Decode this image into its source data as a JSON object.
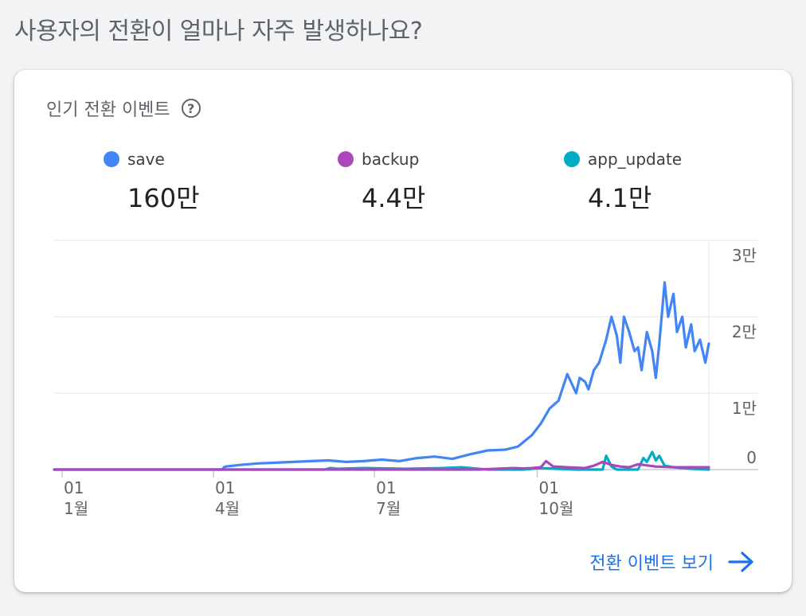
{
  "page": {
    "title": "사용자의 전환이 얼마나 자주 발생하나요?"
  },
  "card": {
    "title": "인기 전환 이벤트",
    "link_label": "전환 이벤트 보기"
  },
  "metrics": [
    {
      "name": "save",
      "value": "160만",
      "color": "#4285f4"
    },
    {
      "name": "backup",
      "value": "4.4만",
      "color": "#ab47bc"
    },
    {
      "name": "app_update",
      "value": "4.1만",
      "color": "#00acc1"
    }
  ],
  "icons": {
    "help": "help-icon",
    "arrow": "arrow-right-icon"
  },
  "chart_data": {
    "type": "line",
    "x_ticks": [
      {
        "day": "01",
        "month": "1월"
      },
      {
        "day": "01",
        "month": "4월"
      },
      {
        "day": "01",
        "month": "7월"
      },
      {
        "day": "01",
        "month": "10월"
      }
    ],
    "y_ticks": [
      "0",
      "1만",
      "2만",
      "3만"
    ],
    "ylim": [
      0,
      30000
    ],
    "grid": true,
    "series": [
      {
        "name": "save",
        "color": "#4285f4",
        "x": [
          0,
          95,
          96,
          97,
          105,
          115,
          125,
          135,
          145,
          155,
          165,
          175,
          185,
          195,
          205,
          215,
          225,
          235,
          245,
          255,
          262,
          270,
          275,
          280,
          285,
          290,
          295,
          297,
          300,
          302,
          305,
          308,
          310,
          312,
          315,
          318,
          320,
          322,
          325,
          328,
          330,
          332,
          335,
          338,
          340,
          342,
          345,
          347,
          350,
          352,
          355,
          357,
          360,
          362,
          365,
          368,
          370
        ],
        "y": [
          0,
          0,
          300,
          400,
          600,
          800,
          900,
          1000,
          1100,
          1200,
          1000,
          1100,
          1300,
          1100,
          1500,
          1700,
          1400,
          2000,
          2500,
          2600,
          3000,
          4500,
          6000,
          8000,
          9000,
          12500,
          10000,
          12000,
          11500,
          10500,
          13000,
          14000,
          15500,
          17000,
          20000,
          17500,
          14000,
          20000,
          18000,
          15500,
          16000,
          13000,
          18000,
          15500,
          12000,
          16500,
          24500,
          20000,
          23000,
          18000,
          20000,
          16000,
          19000,
          15500,
          17000,
          14000,
          16500
        ]
      },
      {
        "name": "backup",
        "color": "#ab47bc",
        "x": [
          0,
          240,
          250,
          260,
          265,
          270,
          275,
          278,
          282,
          290,
          300,
          305,
          310,
          315,
          320,
          325,
          330,
          340,
          350,
          360,
          370
        ],
        "y": [
          0,
          0,
          100,
          200,
          150,
          200,
          300,
          1100,
          400,
          300,
          200,
          500,
          1000,
          600,
          400,
          300,
          700,
          400,
          300,
          300,
          300
        ]
      },
      {
        "name": "app_update",
        "color": "#00acc1",
        "x": [
          0,
          153,
          156,
          160,
          175,
          200,
          220,
          230,
          245,
          265,
          275,
          295,
          300,
          305,
          310,
          312,
          315,
          318,
          320,
          325,
          330,
          333,
          335,
          338,
          340,
          342,
          345,
          350,
          355,
          360,
          370
        ],
        "y": [
          0,
          0,
          200,
          100,
          200,
          100,
          200,
          300,
          0,
          0,
          200,
          0,
          0,
          0,
          0,
          1800,
          400,
          0,
          0,
          0,
          0,
          1500,
          1000,
          2300,
          1200,
          1800,
          500,
          300,
          200,
          100,
          0
        ]
      }
    ]
  }
}
